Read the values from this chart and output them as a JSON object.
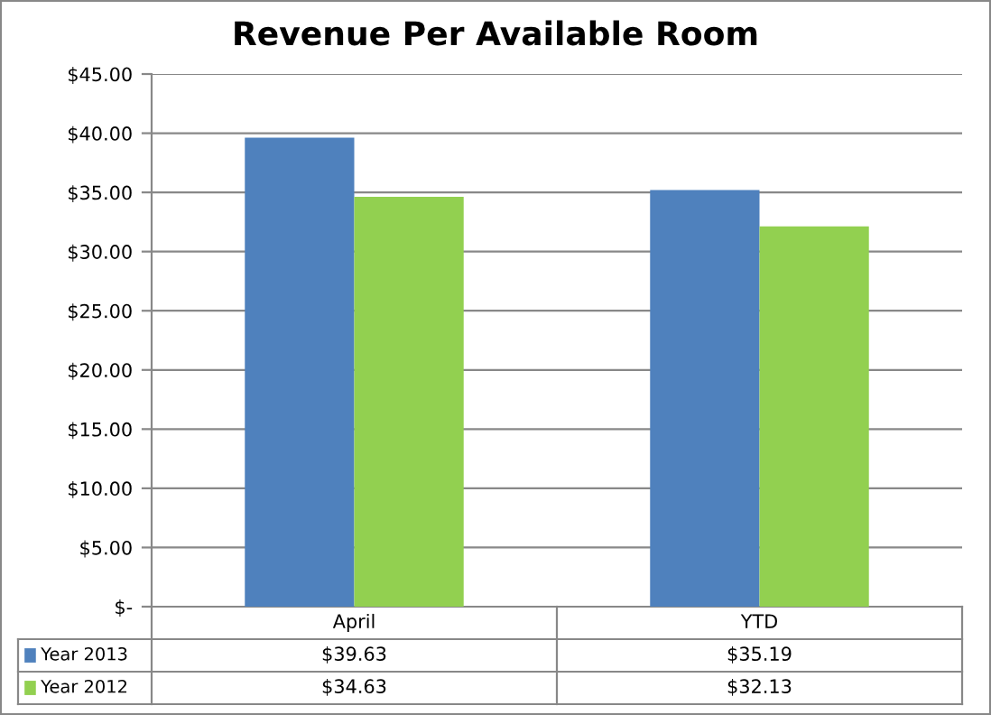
{
  "chart_data": {
    "type": "bar",
    "title": "Revenue Per Available Room",
    "categories": [
      "April",
      "YTD"
    ],
    "series": [
      {
        "name": "Year 2013",
        "color": "#4f81bd",
        "values": [
          39.63,
          35.19
        ],
        "value_labels": [
          "$39.63",
          "$35.19"
        ]
      },
      {
        "name": "Year 2012",
        "color": "#92d050",
        "values": [
          34.63,
          32.13
        ],
        "value_labels": [
          "$34.63",
          "$32.13"
        ]
      }
    ],
    "ylim": [
      0,
      45
    ],
    "yticks": [
      {
        "value": 0,
        "label": "$-"
      },
      {
        "value": 5,
        "label": "$5.00"
      },
      {
        "value": 10,
        "label": "$10.00"
      },
      {
        "value": 15,
        "label": "$15.00"
      },
      {
        "value": 20,
        "label": "$20.00"
      },
      {
        "value": 25,
        "label": "$25.00"
      },
      {
        "value": 30,
        "label": "$30.00"
      },
      {
        "value": 35,
        "label": "$35.00"
      },
      {
        "value": 40,
        "label": "$40.00"
      },
      {
        "value": 45,
        "label": "$45.00"
      }
    ],
    "grid": "y",
    "legend": "bottom"
  }
}
